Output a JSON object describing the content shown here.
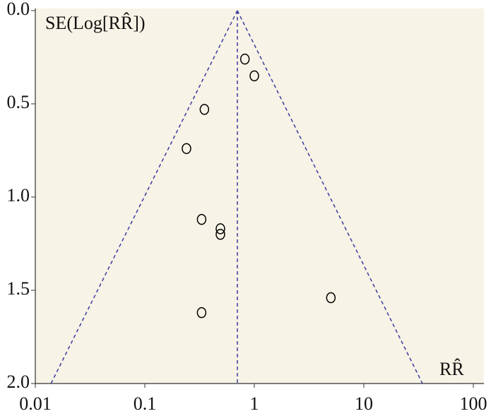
{
  "chart_data": {
    "type": "scatter",
    "y_label": "SE(Log[RR̂])",
    "x_label": "RR̂",
    "x_log": true,
    "y_inverted": true,
    "xlim": [
      0.01,
      100
    ],
    "ylim": [
      0,
      2
    ],
    "xticks": [
      0.01,
      0.1,
      1,
      10,
      100
    ],
    "yticks": [
      {
        "value": 0,
        "label": "0.0"
      },
      0.5,
      {
        "value": 1,
        "label": "1.0"
      },
      1.5,
      {
        "value": 2,
        "label": "2.0"
      }
    ],
    "background": "#f7f3e6",
    "series": [
      {
        "color": "#000000",
        "x": [
          0.82,
          1.0,
          0.35,
          0.24,
          0.33,
          0.49,
          0.49,
          5.0,
          0.33
        ],
        "y": [
          0.26,
          0.35,
          0.53,
          0.74,
          1.12,
          1.17,
          1.2,
          1.54,
          1.62
        ]
      }
    ],
    "lines": [
      {
        "color": "#3a3aa0",
        "x": [
          0.7,
          0.0139
        ],
        "y": [
          0,
          2
        ]
      },
      {
        "color": "#3a3aa0",
        "x": [
          0.7,
          34.3
        ],
        "y": [
          0,
          2
        ]
      },
      {
        "color": "#3a3aa0",
        "x": [
          0.7,
          0.7
        ],
        "y": [
          0,
          2
        ]
      }
    ]
  }
}
